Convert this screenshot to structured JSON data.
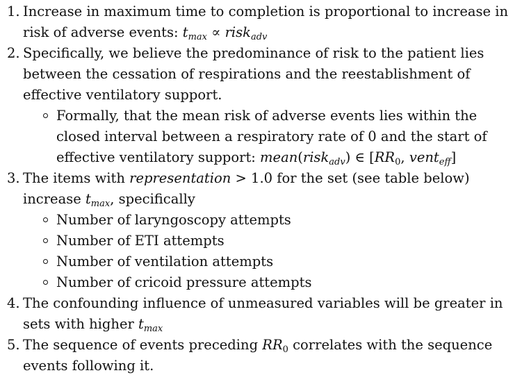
{
  "items": [
    {
      "number": "1.",
      "text_a": "Increase in maximum time to completion is proportional to increase in risk of adverse events: ",
      "math": {
        "t": "t",
        "t_sub": "max",
        "op": " ∝ ",
        "risk": "risk",
        "risk_sub": "adv"
      }
    },
    {
      "number": "2.",
      "text": "Specifically, we believe the predominance of risk to the patient lies between the cessation of respirations and the reestablishment of effective ventilatory support.",
      "sub": {
        "text_a": "Formally, that the mean risk of adverse events lies within the closed interval between a respiratory rate of 0 and the start of effective ventilatory support: ",
        "math": {
          "mean": "mean",
          "open": "(",
          "risk": "risk",
          "risk_sub": "adv",
          "close": ")",
          "in": " ∈ [",
          "rr": "RR",
          "rr_sub": "0",
          "comma": ", ",
          "vent": "vent",
          "vent_sub": "eff",
          "end": "]"
        }
      }
    },
    {
      "number": "3.",
      "text_a": "The items with ",
      "math_rep": "representation",
      "gt": " > 1.0",
      "text_b": " for the set (see table below) increase ",
      "math": {
        "t": "t",
        "t_sub": "max"
      },
      "text_c": ", specifically",
      "subs": [
        "Number of laryngoscopy attempts",
        "Number of ETI attempts",
        "Number of ventilation attempts",
        "Number of cricoid pressure attempts"
      ]
    },
    {
      "number": "4.",
      "text_a": "The confounding influence of unmeasured variables will be greater in sets with higher ",
      "math": {
        "t": "t",
        "t_sub": "max"
      }
    },
    {
      "number": "5.",
      "text_a": "The sequence of events preceding ",
      "math": {
        "rr": "RR",
        "rr_sub": "0"
      },
      "text_b": " correlates with the sequence events following it."
    }
  ]
}
